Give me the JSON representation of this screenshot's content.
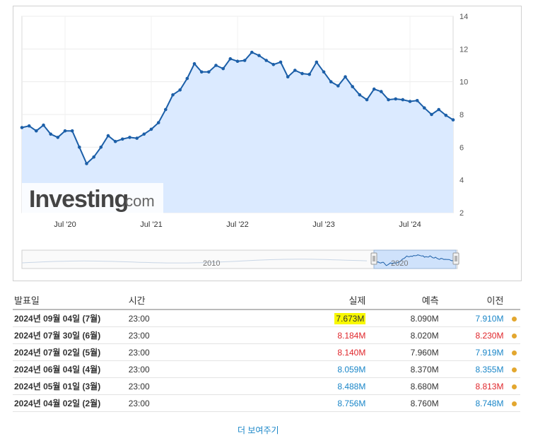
{
  "chart_data": {
    "type": "area",
    "x": [
      "2020-01",
      "2020-02",
      "2020-03",
      "2020-04",
      "2020-05",
      "2020-06",
      "2020-07",
      "2020-08",
      "2020-09",
      "2020-10",
      "2020-11",
      "2020-12",
      "2021-01",
      "2021-02",
      "2021-03",
      "2021-04",
      "2021-05",
      "2021-06",
      "2021-07",
      "2021-08",
      "2021-09",
      "2021-10",
      "2021-11",
      "2021-12",
      "2022-01",
      "2022-02",
      "2022-03",
      "2022-04",
      "2022-05",
      "2022-06",
      "2022-07",
      "2022-08",
      "2022-09",
      "2022-10",
      "2022-11",
      "2022-12",
      "2023-01",
      "2023-02",
      "2023-03",
      "2023-04",
      "2023-05",
      "2023-06",
      "2023-07",
      "2023-08",
      "2023-09",
      "2023-10",
      "2023-11",
      "2023-12",
      "2024-01",
      "2024-02",
      "2024-03",
      "2024-04",
      "2024-05",
      "2024-06",
      "2024-07"
    ],
    "series": [
      {
        "values": [
          7.2,
          7.3,
          7.0,
          7.35,
          6.8,
          6.6,
          7.0,
          7.0,
          6.0,
          5.0,
          5.4,
          6.0,
          6.7,
          6.35,
          6.5,
          6.6,
          6.55,
          6.8,
          7.1,
          7.5,
          8.3,
          9.2,
          9.5,
          10.2,
          11.1,
          10.6,
          10.6,
          11.0,
          10.8,
          11.4,
          11.25,
          11.3,
          11.8,
          11.6,
          11.3,
          11.05,
          11.2,
          10.3,
          10.7,
          10.5,
          10.45,
          11.2,
          10.6,
          10.0,
          9.75,
          10.3,
          9.7,
          9.2,
          8.9,
          9.55,
          9.4,
          8.9,
          8.95,
          8.9,
          8.8
        ],
        "color": "#1c5fa8",
        "fill": "#dbeaff"
      }
    ],
    "tail_values": [
      8.85,
      8.4,
      8.0,
      8.3,
      7.95,
      7.673
    ],
    "x_ticks": [
      "Jul '20",
      "Jul '21",
      "Jul '22",
      "Jul '23",
      "Jul '24"
    ],
    "y_ticks": [
      2,
      4,
      6,
      8,
      10,
      12,
      14
    ],
    "ylim": [
      2,
      14
    ],
    "grid": true,
    "navigator_labels": [
      "2010",
      "2020"
    ]
  },
  "watermark": {
    "brand": "Investing",
    "suffix": ".com"
  },
  "table": {
    "headers": {
      "date": "발표일",
      "time": "시간",
      "actual": "실제",
      "forecast": "예측",
      "previous": "이전"
    },
    "rows": [
      {
        "date": "2024년 09월 04일 (7월)",
        "time": "23:00",
        "actual": "7.673M",
        "actual_tone": "hl",
        "forecast": "8.090M",
        "previous": "7.910M",
        "previous_tone": "pos"
      },
      {
        "date": "2024년 07월 30일 (6월)",
        "time": "23:00",
        "actual": "8.184M",
        "actual_tone": "neg",
        "forecast": "8.020M",
        "previous": "8.230M",
        "previous_tone": "neg"
      },
      {
        "date": "2024년 07월 02일 (5월)",
        "time": "23:00",
        "actual": "8.140M",
        "actual_tone": "neg",
        "forecast": "7.960M",
        "previous": "7.919M",
        "previous_tone": "pos"
      },
      {
        "date": "2024년 06월 04일 (4월)",
        "time": "23:00",
        "actual": "8.059M",
        "actual_tone": "pos",
        "forecast": "8.370M",
        "previous": "8.355M",
        "previous_tone": "pos"
      },
      {
        "date": "2024년 05월 01일 (3월)",
        "time": "23:00",
        "actual": "8.488M",
        "actual_tone": "pos",
        "forecast": "8.680M",
        "previous": "8.813M",
        "previous_tone": "neg"
      },
      {
        "date": "2024년 04월 02일 (2월)",
        "time": "23:00",
        "actual": "8.756M",
        "actual_tone": "pos",
        "forecast": "8.760M",
        "previous": "8.748M",
        "previous_tone": "pos"
      }
    ]
  },
  "more_link": "더 보여주기",
  "colors": {
    "negative": "#e0262b",
    "positive": "#1a86c8",
    "highlight": "#f8f800",
    "status_dot": "#e3a72f"
  }
}
